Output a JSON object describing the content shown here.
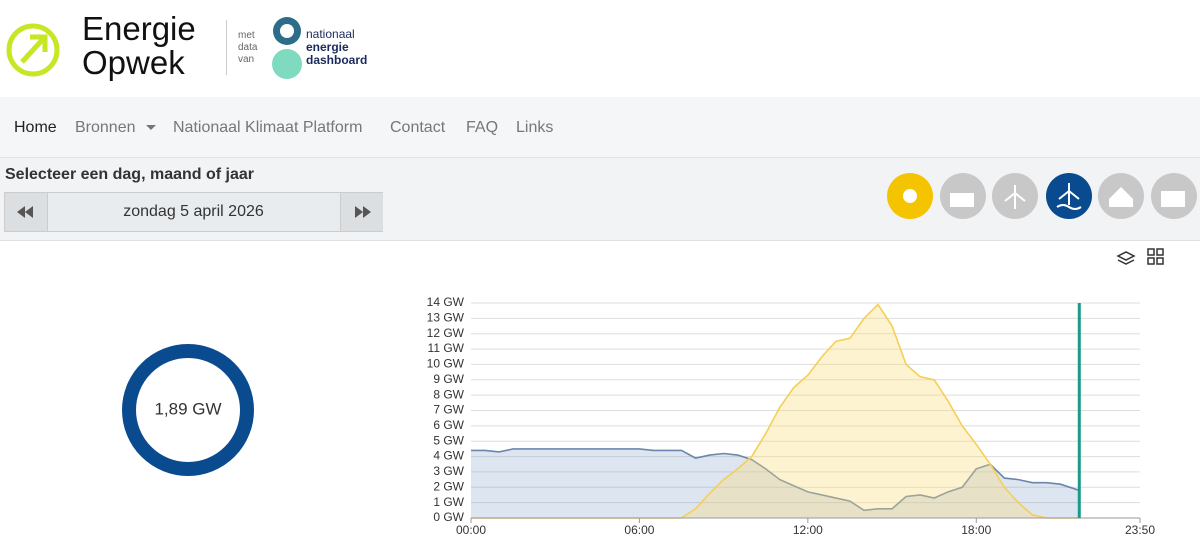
{
  "header": {
    "logo": [
      "Energie",
      "Opwek"
    ],
    "partner_prefix": [
      "met",
      "data",
      "van"
    ],
    "partner_name": [
      "nationaal",
      "energie",
      "dashboard"
    ]
  },
  "nav": [
    "Home",
    "Bronnen",
    "Nationaal Klimaat Platform",
    "Contact",
    "FAQ",
    "Links"
  ],
  "selector": {
    "label": "Selecteer een dag, maand of jaar",
    "date": "zondag 5 april 2026"
  },
  "donut": {
    "label": "1,89 GW"
  },
  "chart_data": {
    "type": "area",
    "x": [
      0,
      0.5,
      1,
      1.5,
      2,
      2.5,
      3,
      3.5,
      4,
      4.5,
      5,
      5.5,
      6,
      6.5,
      7,
      7.5,
      8,
      8.5,
      9,
      9.5,
      10,
      10.5,
      11,
      11.5,
      12,
      12.5,
      13,
      13.5,
      14,
      14.5,
      15,
      15.5,
      16,
      16.5,
      17,
      17.5,
      18,
      18.5,
      19,
      19.5,
      20,
      20.5,
      21,
      21.5,
      21.67
    ],
    "series": [
      {
        "color": "#6b86ad",
        "fill": "rgba(120,150,200,0.25)",
        "values": [
          4.4,
          4.4,
          4.3,
          4.5,
          4.5,
          4.5,
          4.5,
          4.5,
          4.5,
          4.5,
          4.5,
          4.5,
          4.5,
          4.4,
          4.4,
          4.4,
          3.9,
          4.1,
          4.2,
          4.1,
          3.8,
          3.2,
          2.5,
          2.1,
          1.7,
          1.5,
          1.3,
          1.1,
          0.5,
          0.6,
          0.6,
          1.4,
          1.5,
          1.3,
          1.7,
          2.0,
          3.2,
          3.5,
          2.6,
          2.5,
          2.3,
          2.3,
          2.2,
          1.9,
          1.8
        ]
      },
      {
        "color": "#f5cf55",
        "fill": "rgba(250,220,120,0.35)",
        "values": [
          0,
          0,
          0,
          0,
          0,
          0,
          0,
          0,
          0,
          0,
          0,
          0,
          0,
          0,
          0,
          0,
          0.6,
          1.6,
          2.5,
          3.2,
          4.0,
          5.5,
          7.2,
          8.5,
          9.3,
          10.5,
          11.5,
          11.7,
          13.0,
          13.9,
          12.5,
          10.0,
          9.2,
          9.0,
          7.6,
          6.0,
          4.8,
          3.5,
          2.0,
          1.0,
          0.2,
          0,
          0,
          0,
          0
        ]
      }
    ],
    "now_x": 21.67,
    "now_color": "#1a9a8a",
    "xlim": [
      0,
      23.833
    ],
    "xticks": [
      {
        "value": 0,
        "label": "00:00"
      },
      {
        "value": 6,
        "label": "06:00"
      },
      {
        "value": 12,
        "label": "12:00"
      },
      {
        "value": 18,
        "label": "18:00"
      },
      {
        "value": 23.833,
        "label": "23:50"
      }
    ],
    "ylim": [
      0,
      14
    ],
    "yticks": [
      {
        "value": 0,
        "label": "0 GW"
      },
      {
        "value": 1,
        "label": "1 GW"
      },
      {
        "value": 2,
        "label": "2 GW"
      },
      {
        "value": 3,
        "label": "3 GW"
      },
      {
        "value": 4,
        "label": "4 GW"
      },
      {
        "value": 5,
        "label": "5 GW"
      },
      {
        "value": 6,
        "label": "6 GW"
      },
      {
        "value": 7,
        "label": "7 GW"
      },
      {
        "value": 8,
        "label": "8 GW"
      },
      {
        "value": 9,
        "label": "9 GW"
      },
      {
        "value": 10,
        "label": "10 GW"
      },
      {
        "value": 11,
        "label": "11 GW"
      },
      {
        "value": 12,
        "label": "12 GW"
      },
      {
        "value": 13,
        "label": "13 GW"
      },
      {
        "value": 14,
        "label": "14 GW"
      }
    ],
    "grid": true
  }
}
